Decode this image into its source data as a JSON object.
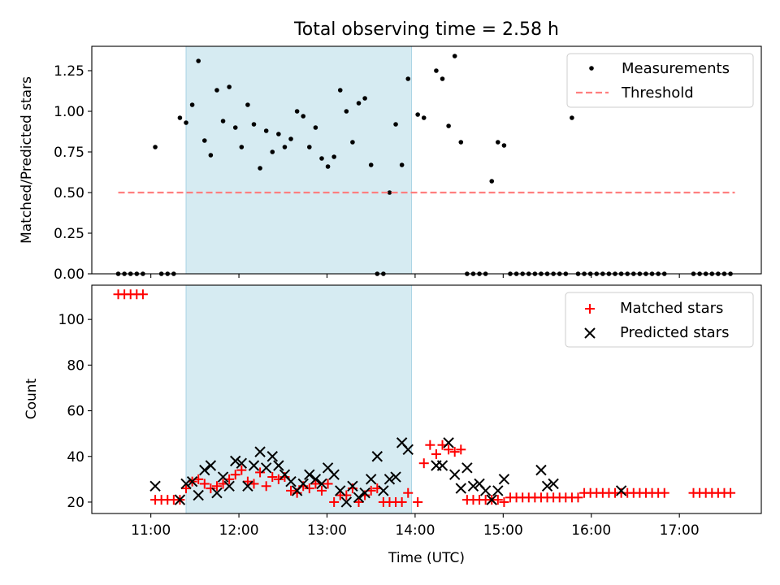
{
  "chart_data": {
    "type": "scatter",
    "title": "Total observing time = 2.58 h",
    "xlabel": "Time (UTC)",
    "x_ticks": [
      "11:00",
      "12:00",
      "13:00",
      "14:00",
      "15:00",
      "16:00",
      "17:00"
    ],
    "x_tick_hours": [
      11,
      12,
      13,
      14,
      15,
      16,
      17
    ],
    "xlim_hours": [
      10.33,
      17.93
    ],
    "shaded_span_hours": [
      11.4,
      13.96
    ],
    "shade_color": "#add8e6",
    "panels": [
      {
        "ylabel": "Matched/Predicted stars",
        "ylim": [
          0,
          1.4
        ],
        "y_ticks": [
          "0.00",
          "0.25",
          "0.50",
          "0.75",
          "1.00",
          "1.25"
        ],
        "legend": "top-right",
        "series": [
          {
            "name": "Measurements",
            "marker": "dot",
            "color": "#000000",
            "x_hours": [
              10.63,
              10.7,
              10.77,
              10.84,
              10.91,
              11.05,
              11.12,
              11.19,
              11.26,
              11.33,
              11.4,
              11.47,
              11.54,
              11.61,
              11.68,
              11.75,
              11.82,
              11.89,
              11.96,
              12.03,
              12.1,
              12.17,
              12.24,
              12.31,
              12.38,
              12.45,
              12.52,
              12.59,
              12.66,
              12.73,
              12.8,
              12.87,
              12.94,
              13.01,
              13.08,
              13.15,
              13.22,
              13.29,
              13.36,
              13.43,
              13.5,
              13.57,
              13.64,
              13.71,
              13.78,
              13.85,
              13.92,
              14.03,
              14.1,
              14.24,
              14.31,
              14.38,
              14.45,
              14.52,
              14.59,
              14.66,
              14.73,
              14.8,
              14.87,
              14.94,
              15.01,
              15.08,
              15.15,
              15.22,
              15.29,
              15.36,
              15.43,
              15.5,
              15.57,
              15.64,
              15.71,
              15.78,
              15.85,
              15.92,
              15.99,
              16.06,
              16.13,
              16.2,
              16.27,
              16.34,
              16.41,
              16.48,
              16.55,
              16.62,
              16.69,
              16.76,
              16.83,
              17.16,
              17.23,
              17.3,
              17.37,
              17.44,
              17.51,
              17.58
            ],
            "y": [
              0,
              0,
              0,
              0,
              0,
              0.78,
              0,
              0,
              0,
              0.96,
              0.93,
              1.04,
              1.31,
              0.82,
              0.73,
              1.13,
              0.94,
              1.15,
              0.9,
              0.78,
              1.04,
              0.92,
              0.65,
              0.88,
              0.75,
              0.86,
              0.78,
              0.83,
              1.0,
              0.97,
              0.78,
              0.9,
              0.71,
              0.66,
              0.72,
              1.13,
              1.0,
              0.81,
              1.05,
              1.08,
              0.67,
              0,
              0,
              0.5,
              0.92,
              0.67,
              1.2,
              0.98,
              0.96,
              1.25,
              1.2,
              0.91,
              1.34,
              0.81,
              0,
              0,
              0,
              0,
              0.57,
              0.81,
              0.79,
              0,
              0,
              0,
              0,
              0,
              0,
              0,
              0,
              0,
              0,
              0.96,
              0,
              0,
              0,
              0,
              0,
              0,
              0,
              0,
              0,
              0,
              0,
              0,
              0,
              0,
              0,
              0,
              0,
              0,
              0,
              0,
              0,
              0
            ]
          },
          {
            "name": "Threshold",
            "line": "dashed",
            "color": "#ff7f7f",
            "x_hours": [
              10.63,
              17.63
            ],
            "y": [
              0.5,
              0.5
            ]
          }
        ]
      },
      {
        "ylabel": "Count",
        "ylim": [
          15,
          115
        ],
        "y_ticks": [
          "20",
          "40",
          "60",
          "80",
          "100"
        ],
        "legend": "top-right",
        "series": [
          {
            "name": "Matched stars",
            "marker": "plus",
            "color": "#ff0000",
            "x_hours": [
              10.63,
              10.7,
              10.77,
              10.84,
              10.91,
              11.05,
              11.12,
              11.19,
              11.26,
              11.33,
              11.4,
              11.47,
              11.54,
              11.61,
              11.68,
              11.75,
              11.82,
              11.89,
              11.96,
              12.03,
              12.1,
              12.17,
              12.24,
              12.31,
              12.38,
              12.45,
              12.52,
              12.59,
              12.66,
              12.73,
              12.8,
              12.87,
              12.94,
              13.01,
              13.08,
              13.15,
              13.22,
              13.29,
              13.36,
              13.43,
              13.5,
              13.57,
              13.64,
              13.71,
              13.78,
              13.85,
              13.92,
              14.03,
              14.1,
              14.17,
              14.24,
              14.31,
              14.38,
              14.45,
              14.52,
              14.59,
              14.66,
              14.73,
              14.8,
              14.87,
              14.94,
              15.01,
              15.08,
              15.15,
              15.22,
              15.29,
              15.36,
              15.43,
              15.5,
              15.57,
              15.64,
              15.71,
              15.78,
              15.85,
              15.92,
              15.99,
              16.06,
              16.13,
              16.2,
              16.27,
              16.34,
              16.41,
              16.48,
              16.55,
              16.62,
              16.69,
              16.76,
              16.83,
              17.16,
              17.23,
              17.3,
              17.37,
              17.44,
              17.51,
              17.58
            ],
            "y": [
              111,
              111,
              111,
              111,
              111,
              21,
              21,
              21,
              21,
              21,
              26,
              29,
              30,
              28,
              26,
              27,
              28,
              30,
              32,
              34,
              29,
              28,
              33,
              27,
              31,
              30,
              31,
              25,
              24,
              27,
              26,
              28,
              25,
              28,
              20,
              23,
              23,
              26,
              20,
              23,
              25,
              26,
              20,
              20,
              20,
              20,
              24,
              20,
              37,
              45,
              41,
              45,
              43,
              42,
              43,
              21,
              21,
              21,
              21,
              21,
              21,
              20,
              22,
              22,
              22,
              22,
              22,
              22,
              22,
              22,
              22,
              22,
              22,
              22,
              24,
              24,
              24,
              24,
              24,
              24,
              24,
              24,
              24,
              24,
              24,
              24,
              24,
              24,
              24,
              24,
              24,
              24,
              24,
              24,
              24
            ],
            "x_hours_override": [
              10.63,
              10.7,
              10.77,
              10.84,
              10.91,
              11.05,
              11.12,
              11.19,
              11.26,
              11.33,
              11.4,
              11.47,
              11.54,
              11.61,
              11.68,
              11.75,
              11.82,
              11.89,
              11.96,
              12.03,
              12.1,
              12.17,
              12.24,
              12.31,
              12.38,
              12.45,
              12.52,
              12.59,
              12.66,
              12.73,
              12.8,
              12.87,
              12.94,
              13.01,
              13.08,
              13.15,
              13.22,
              13.29,
              13.36,
              13.43,
              13.5,
              13.57,
              13.64,
              13.71,
              13.78,
              13.85,
              13.92,
              14.03,
              14.1,
              14.17,
              14.24,
              14.31,
              14.38,
              14.45,
              14.52,
              14.59,
              14.66,
              14.73,
              14.8,
              14.87,
              14.94,
              15.01,
              15.08,
              15.15,
              15.22,
              15.29,
              15.36,
              15.43,
              15.5,
              15.57,
              15.64,
              15.71,
              15.78,
              15.85,
              15.92,
              15.99,
              16.06,
              16.13,
              16.2,
              16.27,
              16.34,
              16.41,
              16.48,
              16.55,
              16.62,
              16.69,
              16.76,
              16.83,
              17.16,
              17.23,
              17.3,
              17.37,
              17.44,
              17.51,
              17.58
            ]
          },
          {
            "name": "Predicted stars",
            "marker": "x",
            "color": "#000000",
            "x_hours": [
              11.05,
              11.33,
              11.4,
              11.47,
              11.54,
              11.61,
              11.68,
              11.75,
              11.82,
              11.89,
              11.96,
              12.03,
              12.1,
              12.17,
              12.24,
              12.31,
              12.38,
              12.45,
              12.52,
              12.59,
              12.66,
              12.73,
              12.8,
              12.87,
              12.94,
              13.01,
              13.08,
              13.15,
              13.22,
              13.29,
              13.36,
              13.43,
              13.5,
              13.57,
              13.64,
              13.71,
              13.78,
              13.85,
              13.92,
              14.24,
              14.31,
              14.38,
              14.45,
              14.52,
              14.59,
              14.66,
              14.73,
              14.8,
              14.87,
              14.94,
              15.01,
              15.43,
              15.5,
              15.57,
              16.34
            ],
            "y": [
              27,
              21,
              28,
              29,
              23,
              34,
              36,
              24,
              31,
              27,
              38,
              37,
              27,
              36,
              42,
              35,
              40,
              36,
              32,
              29,
              25,
              28,
              32,
              30,
              28,
              35,
              32,
              25,
              20,
              27,
              22,
              24,
              30,
              40,
              25,
              30,
              31,
              46,
              43,
              36,
              36,
              46,
              32,
              26,
              35,
              27,
              28,
              25,
              21,
              25,
              30,
              34,
              27,
              28,
              25
            ]
          }
        ]
      }
    ]
  }
}
